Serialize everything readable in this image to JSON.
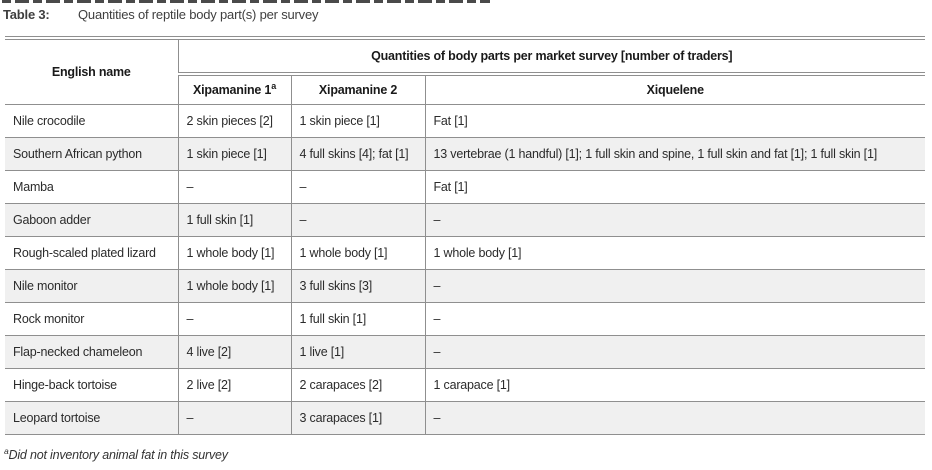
{
  "caption": {
    "label": "Table 3:",
    "text": "Quantities of reptile body part(s) per survey"
  },
  "table": {
    "col1_header": "English name",
    "group_header": "Quantities of body parts per market survey [number of traders]",
    "sub_headers": [
      {
        "label": "Xipamanine 1",
        "sup": "a"
      },
      {
        "label": "Xipamanine 2",
        "sup": ""
      },
      {
        "label": "Xiquelene",
        "sup": ""
      }
    ],
    "rows": [
      {
        "name": "Nile crocodile",
        "cells": [
          "2 skin pieces [2]",
          "1 skin piece [1]",
          "Fat [1]"
        ]
      },
      {
        "name": "Southern African python",
        "cells": [
          "1 skin piece [1]",
          "4 full skins [4]; fat [1]",
          "13 vertebrae (1 handful) [1]; 1 full skin and spine, 1 full skin and fat [1]; 1 full skin [1]"
        ]
      },
      {
        "name": "Mamba",
        "cells": [
          "–",
          "–",
          "Fat [1]"
        ]
      },
      {
        "name": "Gaboon adder",
        "cells": [
          "1 full skin [1]",
          "–",
          "–"
        ]
      },
      {
        "name": "Rough-scaled plated lizard",
        "cells": [
          "1 whole body [1]",
          "1 whole body [1]",
          "1 whole body [1]"
        ]
      },
      {
        "name": "Nile monitor",
        "cells": [
          "1 whole body [1]",
          "3 full skins [3]",
          "–"
        ]
      },
      {
        "name": "Rock monitor",
        "cells": [
          "–",
          "1 full skin [1]",
          "–"
        ]
      },
      {
        "name": "Flap-necked chameleon",
        "cells": [
          "4 live [2]",
          "1 live [1]",
          "–"
        ]
      },
      {
        "name": "Hinge-back tortoise",
        "cells": [
          "2 live [2]",
          "2 carapaces [2]",
          "1 carapace [1]"
        ]
      },
      {
        "name": "Leopard tortoise",
        "cells": [
          "–",
          "3 carapaces [1]",
          "–"
        ]
      }
    ]
  },
  "footnote": {
    "sup": "a",
    "text": "Did not inventory animal fat in this survey"
  },
  "colors": {
    "border": "#8f8f8f",
    "stripe": "#f0f0f0",
    "text": "#2b2b2b",
    "header_text": "#1a1a1a",
    "caption_text": "#3f3f3f"
  }
}
